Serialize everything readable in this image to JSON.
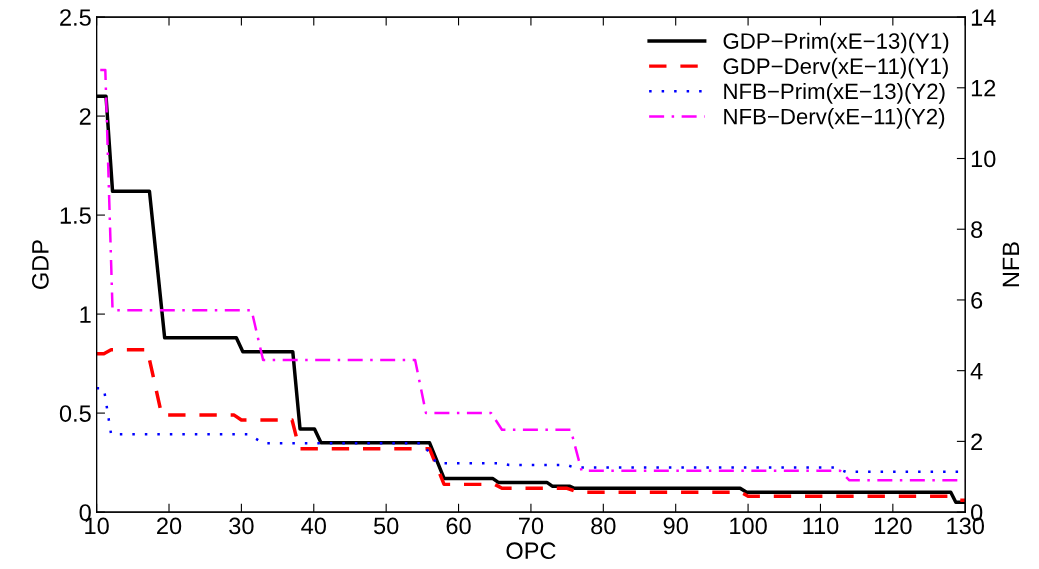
{
  "chart_data": {
    "type": "line",
    "xlabel": "OPC",
    "ylabel": "GDP",
    "y2label": "NFB",
    "xlim": [
      10,
      130
    ],
    "xticks": [
      10,
      20,
      30,
      40,
      50,
      60,
      70,
      80,
      90,
      100,
      110,
      120,
      130
    ],
    "ylim": [
      0,
      2.5
    ],
    "yticks": [
      0,
      0.5,
      1,
      1.5,
      2,
      2.5
    ],
    "y2lim": [
      0,
      14
    ],
    "y2ticks": [
      0,
      2,
      4,
      6,
      8,
      10,
      12,
      14
    ],
    "legend": "top right",
    "grid": false,
    "marker": "none",
    "series": [
      {
        "name": "GDP−Prim(xE−13)(Y1)",
        "color": "#000000",
        "line_style": "solid",
        "x": [
          10,
          11.3,
          12.2,
          17.3,
          19.4,
          29.3,
          30.2,
          37.1,
          38.1,
          40.1,
          41,
          56,
          58,
          64.7,
          65.5,
          72.2,
          73,
          75.4,
          76,
          98.9,
          99.8,
          128,
          128.7,
          130
        ],
        "values": [
          2.1,
          2.1,
          1.62,
          1.62,
          0.88,
          0.88,
          0.81,
          0.81,
          0.42,
          0.42,
          0.35,
          0.35,
          0.17,
          0.17,
          0.15,
          0.15,
          0.13,
          0.13,
          0.12,
          0.12,
          0.1,
          0.1,
          0.05,
          0.05
        ]
      },
      {
        "name": "GDP−Derv(xE−11)(Y1)",
        "color": "#ff0000",
        "line_style": "dashed",
        "x": [
          10,
          11,
          12,
          17,
          19,
          29,
          30,
          37,
          38,
          56,
          58,
          65,
          66,
          75,
          76.5,
          99,
          100,
          128,
          129,
          130
        ],
        "values": [
          0.8,
          0.8,
          0.82,
          0.82,
          0.49,
          0.49,
          0.465,
          0.465,
          0.32,
          0.32,
          0.14,
          0.14,
          0.12,
          0.12,
          0.1,
          0.1,
          0.08,
          0.08,
          0.06,
          0.06
        ]
      },
      {
        "name": "NFB−Prim(xE−13)(Y2)",
        "color": "#0000ff",
        "line_style": "dotted",
        "axis": "y2",
        "x": [
          10,
          11,
          12,
          31,
          33,
          55,
          57,
          66,
          67,
          75,
          76,
          112,
          113.5,
          130
        ],
        "values": [
          3.5,
          3.5,
          2.2,
          2.2,
          1.95,
          1.95,
          1.38,
          1.38,
          1.33,
          1.33,
          1.26,
          1.26,
          1.14,
          1.14
        ]
      },
      {
        "name": "NFB−Derv(xE−11)(Y2)",
        "color": "#ff00ff",
        "line_style": "dashdot",
        "axis": "y2",
        "x": [
          10.5,
          11.2,
          12.2,
          31.4,
          33,
          54,
          55.5,
          64.5,
          66,
          75.5,
          77,
          112.7,
          114,
          130
        ],
        "values": [
          12.5,
          12.5,
          5.71,
          5.71,
          4.3,
          4.3,
          2.8,
          2.8,
          2.33,
          2.33,
          1.17,
          1.17,
          0.9,
          0.9
        ]
      }
    ]
  }
}
